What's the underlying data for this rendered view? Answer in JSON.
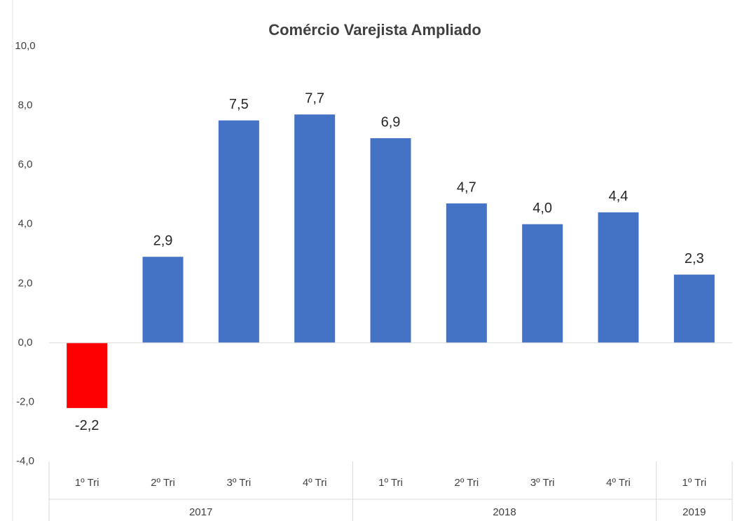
{
  "chart_data": {
    "type": "bar",
    "title": "Comércio Varejista Ampliado",
    "categories": [
      "1º Tri",
      "2º Tri",
      "3º Tri",
      "4º Tri",
      "1º Tri",
      "2º Tri",
      "3º Tri",
      "4º Tri",
      "1º Tri"
    ],
    "group_labels": [
      "2017",
      "2018",
      "2019"
    ],
    "group_sizes": [
      4,
      4,
      1
    ],
    "values": [
      -2.2,
      2.9,
      7.5,
      7.7,
      6.9,
      4.7,
      4.0,
      4.4,
      2.3
    ],
    "value_labels": [
      "-2,2",
      "2,9",
      "7,5",
      "7,7",
      "6,9",
      "4,7",
      "4,0",
      "4,4",
      "2,3"
    ],
    "colors": [
      "#ff0000",
      "#4472c4",
      "#4472c4",
      "#4472c4",
      "#4472c4",
      "#4472c4",
      "#4472c4",
      "#4472c4",
      "#4472c4"
    ],
    "ylim": [
      -4,
      10
    ],
    "yticks": [
      {
        "value": -4,
        "label": "-4,0"
      },
      {
        "value": -2,
        "label": "-2,0"
      },
      {
        "value": 0,
        "label": "0,0"
      },
      {
        "value": 2,
        "label": "2,0"
      },
      {
        "value": 4,
        "label": "4,0"
      },
      {
        "value": 6,
        "label": "6,0"
      },
      {
        "value": 8,
        "label": "8,0"
      },
      {
        "value": 10,
        "label": "10,0"
      }
    ],
    "grid": false
  }
}
